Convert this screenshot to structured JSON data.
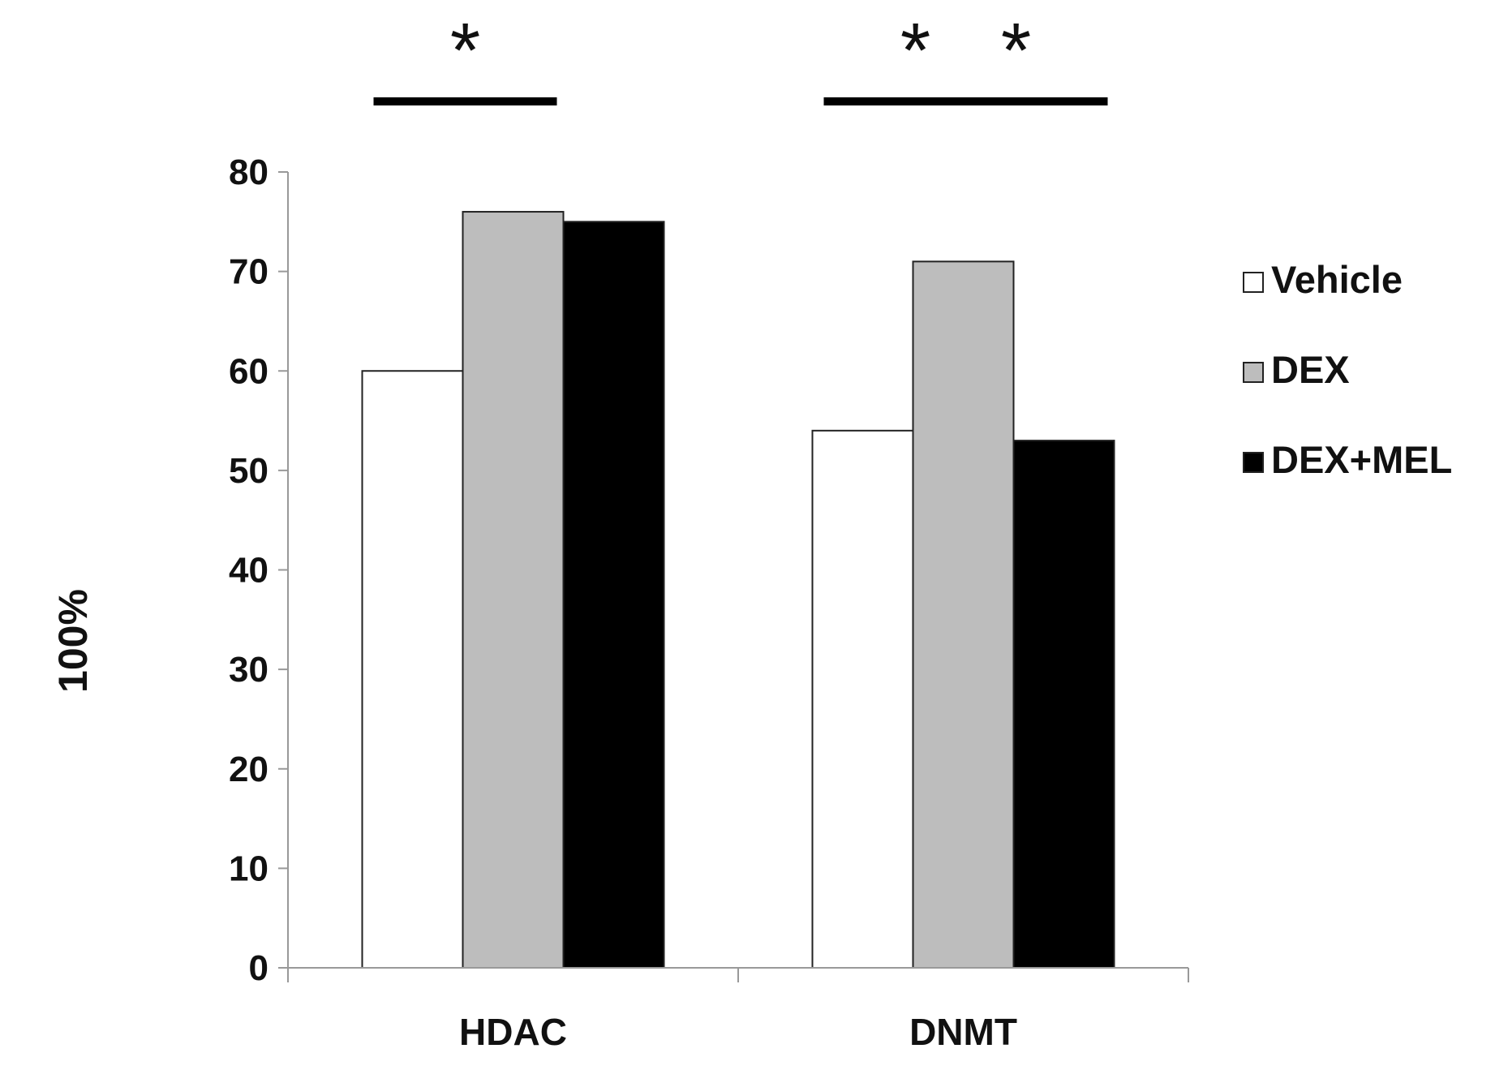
{
  "chart_data": {
    "type": "bar",
    "title": "",
    "xlabel": "",
    "ylabel": "100%",
    "ylim": [
      0,
      80
    ],
    "yticks": [
      0,
      10,
      20,
      30,
      40,
      50,
      60,
      70,
      80
    ],
    "categories": [
      "HDAC",
      "DNMT"
    ],
    "series": [
      {
        "name": "Vehicle",
        "values": [
          60,
          54
        ],
        "color": "#ffffff"
      },
      {
        "name": "DEX",
        "values": [
          76,
          71
        ],
        "color": "#bdbdbd"
      },
      {
        "name": "DEX+MEL",
        "values": [
          75,
          53
        ],
        "color": "#000000"
      }
    ],
    "grid": false,
    "legend_position": "right",
    "significance": [
      {
        "label": "*",
        "category": "HDAC",
        "from_series": "Vehicle",
        "to_series": "DEX"
      },
      {
        "label": "*",
        "category": "DNMT",
        "from_series": "Vehicle",
        "to_series": "DEX"
      },
      {
        "label": "*",
        "category": "DNMT",
        "from_series": "DEX",
        "to_series": "DEX+MEL"
      }
    ]
  }
}
